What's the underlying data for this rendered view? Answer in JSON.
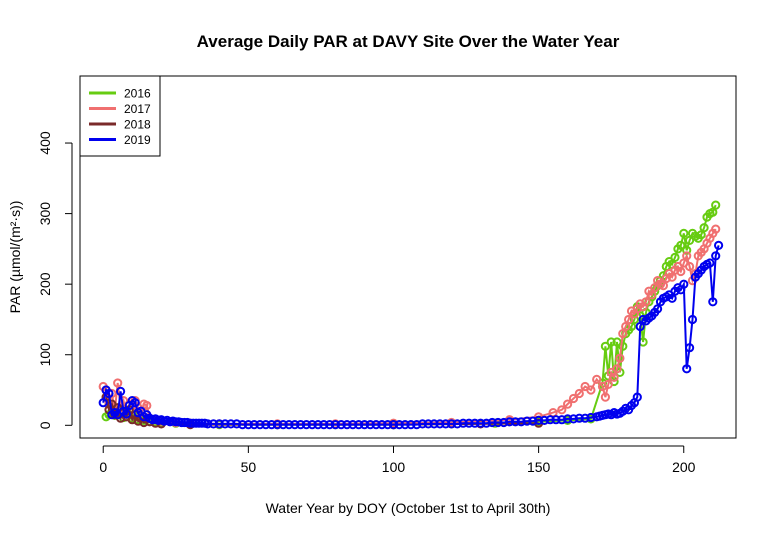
{
  "chart_data": {
    "type": "line",
    "title": "Average Daily PAR at DAVY Site Over the Water Year",
    "xlabel": "Water Year by DOY (October 1st to April 30th)",
    "ylabel": "PAR (µmol/(m²·s))",
    "xlim": [
      -8,
      218
    ],
    "ylim": [
      -18,
      495
    ],
    "x_ticks": [
      0,
      50,
      100,
      150,
      200
    ],
    "y_ticks": [
      0,
      100,
      200,
      300,
      400
    ],
    "grid": false,
    "legend_position": "top-left",
    "series": [
      {
        "name": "2016",
        "color": "#66cc11",
        "points": [
          [
            1,
            12
          ],
          [
            2,
            15
          ],
          [
            3,
            18
          ],
          [
            4,
            14
          ],
          [
            5,
            22
          ],
          [
            6,
            16
          ],
          [
            7,
            11
          ],
          [
            8,
            20
          ],
          [
            9,
            14
          ],
          [
            10,
            10
          ],
          [
            11,
            12
          ],
          [
            12,
            8
          ],
          [
            13,
            11
          ],
          [
            14,
            7
          ],
          [
            15,
            9
          ],
          [
            16,
            6
          ],
          [
            18,
            5
          ],
          [
            20,
            4
          ],
          [
            25,
            3
          ],
          [
            30,
            2
          ],
          [
            40,
            1
          ],
          [
            60,
            1
          ],
          [
            80,
            1
          ],
          [
            100,
            1
          ],
          [
            120,
            2
          ],
          [
            135,
            3
          ],
          [
            150,
            5
          ],
          [
            160,
            7
          ],
          [
            168,
            9
          ],
          [
            172,
            60
          ],
          [
            173,
            112
          ],
          [
            174,
            70
          ],
          [
            175,
            118
          ],
          [
            176,
            62
          ],
          [
            177,
            118
          ],
          [
            178,
            75
          ],
          [
            179,
            112
          ],
          [
            180,
            130
          ],
          [
            181,
            135
          ],
          [
            182,
            140
          ],
          [
            183,
            150
          ],
          [
            184,
            168
          ],
          [
            185,
            155
          ],
          [
            186,
            118
          ],
          [
            187,
            160
          ],
          [
            188,
            175
          ],
          [
            189,
            182
          ],
          [
            190,
            190
          ],
          [
            191,
            198
          ],
          [
            192,
            205
          ],
          [
            193,
            212
          ],
          [
            194,
            225
          ],
          [
            195,
            232
          ],
          [
            196,
            228
          ],
          [
            197,
            238
          ],
          [
            198,
            250
          ],
          [
            199,
            255
          ],
          [
            200,
            272
          ],
          [
            201,
            248
          ],
          [
            202,
            262
          ],
          [
            203,
            272
          ],
          [
            204,
            268
          ],
          [
            205,
            265
          ],
          [
            206,
            270
          ],
          [
            207,
            280
          ],
          [
            208,
            295
          ],
          [
            209,
            300
          ],
          [
            210,
            302
          ],
          [
            211,
            312
          ]
        ]
      },
      {
        "name": "2017",
        "color": "#f07070",
        "points": [
          [
            0,
            55
          ],
          [
            1,
            50
          ],
          [
            2,
            30
          ],
          [
            3,
            45
          ],
          [
            4,
            20
          ],
          [
            5,
            60
          ],
          [
            6,
            25
          ],
          [
            7,
            35
          ],
          [
            8,
            15
          ],
          [
            9,
            30
          ],
          [
            10,
            22
          ],
          [
            11,
            35
          ],
          [
            12,
            25
          ],
          [
            13,
            12
          ],
          [
            14,
            30
          ],
          [
            15,
            28
          ],
          [
            16,
            10
          ],
          [
            18,
            8
          ],
          [
            20,
            6
          ],
          [
            25,
            4
          ],
          [
            30,
            3
          ],
          [
            40,
            2
          ],
          [
            60,
            2
          ],
          [
            80,
            2
          ],
          [
            100,
            3
          ],
          [
            120,
            4
          ],
          [
            140,
            8
          ],
          [
            150,
            12
          ],
          [
            155,
            18
          ],
          [
            158,
            22
          ],
          [
            160,
            30
          ],
          [
            162,
            38
          ],
          [
            164,
            45
          ],
          [
            166,
            55
          ],
          [
            168,
            50
          ],
          [
            170,
            65
          ],
          [
            172,
            55
          ],
          [
            173,
            40
          ],
          [
            174,
            58
          ],
          [
            175,
            75
          ],
          [
            176,
            68
          ],
          [
            177,
            80
          ],
          [
            178,
            95
          ],
          [
            179,
            130
          ],
          [
            180,
            140
          ],
          [
            181,
            150
          ],
          [
            182,
            162
          ],
          [
            183,
            158
          ],
          [
            184,
            165
          ],
          [
            185,
            172
          ],
          [
            186,
            168
          ],
          [
            187,
            175
          ],
          [
            188,
            190
          ],
          [
            189,
            185
          ],
          [
            190,
            195
          ],
          [
            191,
            205
          ],
          [
            192,
            200
          ],
          [
            193,
            198
          ],
          [
            194,
            208
          ],
          [
            195,
            215
          ],
          [
            196,
            210
          ],
          [
            197,
            220
          ],
          [
            198,
            225
          ],
          [
            199,
            218
          ],
          [
            200,
            230
          ],
          [
            201,
            240
          ],
          [
            202,
            225
          ],
          [
            203,
            205
          ],
          [
            204,
            215
          ],
          [
            205,
            240
          ],
          [
            206,
            245
          ],
          [
            207,
            250
          ],
          [
            208,
            258
          ],
          [
            209,
            265
          ],
          [
            210,
            272
          ],
          [
            211,
            278
          ]
        ]
      },
      {
        "name": "2018",
        "color": "#7a2a2a",
        "points": [
          [
            1,
            40
          ],
          [
            2,
            22
          ],
          [
            3,
            30
          ],
          [
            4,
            15
          ],
          [
            5,
            25
          ],
          [
            6,
            10
          ],
          [
            7,
            18
          ],
          [
            8,
            12
          ],
          [
            9,
            22
          ],
          [
            10,
            8
          ],
          [
            11,
            15
          ],
          [
            12,
            6
          ],
          [
            13,
            10
          ],
          [
            14,
            4
          ],
          [
            16,
            5
          ],
          [
            18,
            3
          ],
          [
            20,
            2
          ],
          [
            30,
            1
          ],
          [
            60,
            1
          ],
          [
            100,
            1
          ],
          [
            130,
            2
          ],
          [
            150,
            3
          ]
        ]
      },
      {
        "name": "2019",
        "color": "#0000ee",
        "points": [
          [
            0,
            32
          ],
          [
            1,
            50
          ],
          [
            2,
            45
          ],
          [
            3,
            15
          ],
          [
            4,
            18
          ],
          [
            5,
            15
          ],
          [
            6,
            48
          ],
          [
            7,
            20
          ],
          [
            8,
            16
          ],
          [
            9,
            28
          ],
          [
            10,
            35
          ],
          [
            11,
            32
          ],
          [
            12,
            18
          ],
          [
            13,
            20
          ],
          [
            14,
            12
          ],
          [
            15,
            15
          ],
          [
            16,
            10
          ],
          [
            17,
            8
          ],
          [
            18,
            9
          ],
          [
            19,
            7
          ],
          [
            20,
            8
          ],
          [
            21,
            6
          ],
          [
            22,
            7
          ],
          [
            23,
            5
          ],
          [
            24,
            6
          ],
          [
            25,
            5
          ],
          [
            26,
            5
          ],
          [
            27,
            4
          ],
          [
            28,
            4
          ],
          [
            29,
            4
          ],
          [
            30,
            3
          ],
          [
            31,
            3
          ],
          [
            32,
            3
          ],
          [
            33,
            3
          ],
          [
            34,
            3
          ],
          [
            35,
            3
          ],
          [
            36,
            2
          ],
          [
            38,
            2
          ],
          [
            40,
            2
          ],
          [
            42,
            2
          ],
          [
            44,
            2
          ],
          [
            46,
            2
          ],
          [
            48,
            1
          ],
          [
            50,
            1
          ],
          [
            52,
            1
          ],
          [
            54,
            1
          ],
          [
            56,
            1
          ],
          [
            58,
            1
          ],
          [
            60,
            1
          ],
          [
            62,
            1
          ],
          [
            64,
            1
          ],
          [
            66,
            1
          ],
          [
            68,
            1
          ],
          [
            70,
            1
          ],
          [
            72,
            1
          ],
          [
            74,
            1
          ],
          [
            76,
            1
          ],
          [
            78,
            1
          ],
          [
            80,
            1
          ],
          [
            82,
            1
          ],
          [
            84,
            1
          ],
          [
            86,
            1
          ],
          [
            88,
            1
          ],
          [
            90,
            1
          ],
          [
            92,
            1
          ],
          [
            94,
            1
          ],
          [
            96,
            1
          ],
          [
            98,
            1
          ],
          [
            100,
            1
          ],
          [
            102,
            1
          ],
          [
            104,
            1
          ],
          [
            106,
            1
          ],
          [
            108,
            1
          ],
          [
            110,
            2
          ],
          [
            112,
            2
          ],
          [
            114,
            2
          ],
          [
            116,
            2
          ],
          [
            118,
            2
          ],
          [
            120,
            2
          ],
          [
            122,
            2
          ],
          [
            124,
            3
          ],
          [
            126,
            3
          ],
          [
            128,
            3
          ],
          [
            130,
            3
          ],
          [
            132,
            3
          ],
          [
            134,
            4
          ],
          [
            136,
            4
          ],
          [
            138,
            4
          ],
          [
            140,
            5
          ],
          [
            142,
            5
          ],
          [
            144,
            5
          ],
          [
            146,
            6
          ],
          [
            148,
            6
          ],
          [
            150,
            7
          ],
          [
            152,
            7
          ],
          [
            154,
            8
          ],
          [
            156,
            8
          ],
          [
            158,
            8
          ],
          [
            160,
            9
          ],
          [
            162,
            9
          ],
          [
            164,
            10
          ],
          [
            166,
            10
          ],
          [
            168,
            11
          ],
          [
            170,
            12
          ],
          [
            171,
            13
          ],
          [
            172,
            14
          ],
          [
            173,
            15
          ],
          [
            174,
            16
          ],
          [
            175,
            15
          ],
          [
            176,
            18
          ],
          [
            177,
            16
          ],
          [
            178,
            17
          ],
          [
            179,
            20
          ],
          [
            180,
            24
          ],
          [
            181,
            22
          ],
          [
            182,
            28
          ],
          [
            183,
            32
          ],
          [
            184,
            40
          ],
          [
            185,
            140
          ],
          [
            186,
            150
          ],
          [
            187,
            148
          ],
          [
            188,
            152
          ],
          [
            189,
            155
          ],
          [
            190,
            160
          ],
          [
            191,
            165
          ],
          [
            192,
            175
          ],
          [
            193,
            180
          ],
          [
            194,
            182
          ],
          [
            195,
            185
          ],
          [
            196,
            180
          ],
          [
            197,
            190
          ],
          [
            198,
            195
          ],
          [
            199,
            192
          ],
          [
            200,
            200
          ],
          [
            201,
            80
          ],
          [
            202,
            110
          ],
          [
            203,
            150
          ],
          [
            204,
            210
          ],
          [
            205,
            215
          ],
          [
            206,
            220
          ],
          [
            207,
            225
          ],
          [
            208,
            228
          ],
          [
            209,
            230
          ],
          [
            210,
            175
          ],
          [
            211,
            240
          ],
          [
            212,
            255
          ]
        ]
      }
    ]
  }
}
